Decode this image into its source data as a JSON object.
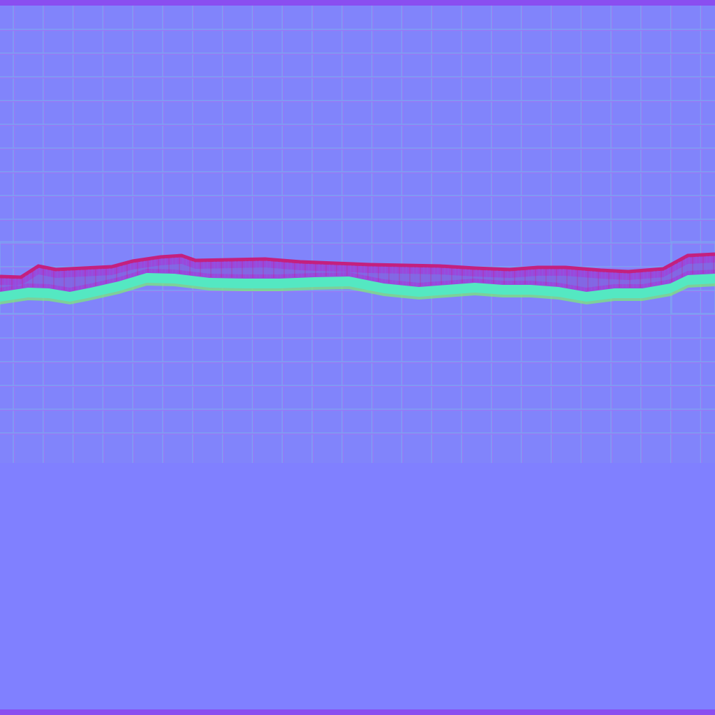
{
  "texture": {
    "kind": "normal-map",
    "colors": {
      "base": "#8080ff",
      "border_band": "#8a4ef0",
      "tile_line_light": "#7fa0f2",
      "tile_line_dark": "#9a78f6",
      "crack_top": "#c4207e",
      "crack_body": "#9a48dc",
      "crack_mid": "#7c70e6",
      "crack_shadow": "#54e8c2",
      "crack_glow": "#7cf070"
    }
  }
}
